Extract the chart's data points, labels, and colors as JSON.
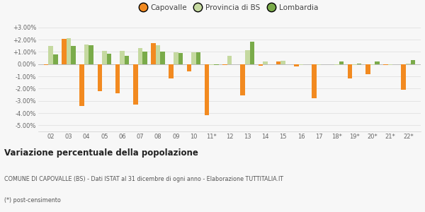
{
  "categories": [
    "02",
    "03",
    "04",
    "05",
    "06",
    "07",
    "08",
    "09",
    "10",
    "11*",
    "12",
    "13",
    "14",
    "15",
    "16",
    "17",
    "18*",
    "19*",
    "20*",
    "21*",
    "22*"
  ],
  "capovalle": [
    -0.1,
    2.05,
    -3.45,
    -2.2,
    -2.4,
    -3.3,
    1.7,
    -1.15,
    -0.6,
    -4.15,
    -0.05,
    -2.55,
    -0.15,
    0.2,
    -0.2,
    -2.8,
    0.0,
    -1.2,
    -0.85,
    -0.1,
    -2.1
  ],
  "provincia_bs": [
    1.5,
    2.1,
    1.6,
    1.05,
    1.05,
    1.3,
    1.55,
    0.95,
    0.95,
    -0.05,
    0.7,
    1.15,
    0.22,
    0.25,
    -0.05,
    -0.05,
    -0.1,
    -0.05,
    -0.05,
    -0.1,
    0.05
  ],
  "lombardia": [
    0.8,
    1.5,
    1.55,
    0.85,
    0.7,
    1.0,
    1.0,
    0.9,
    0.95,
    -0.05,
    0.0,
    1.8,
    0.0,
    0.0,
    0.0,
    0.0,
    0.2,
    0.05,
    0.2,
    0.0,
    0.35
  ],
  "color_capovalle": "#f28a20",
  "color_provincia": "#c5d9a0",
  "color_lombardia": "#7aab4a",
  "title_bold": "Variazione percentuale della popolazione",
  "subtitle": "COMUNE DI CAPOVALLE (BS) - Dati ISTAT al 31 dicembre di ogni anno - Elaborazione TUTTITALIA.IT",
  "footnote": "(*) post-censimento",
  "ylim": [
    -5.5,
    3.5
  ],
  "yticks": [
    -5.0,
    -4.0,
    -3.0,
    -2.0,
    -1.0,
    0.0,
    1.0,
    2.0,
    3.0
  ],
  "ytick_labels": [
    "-5.00%",
    "-4.00%",
    "-3.00%",
    "-2.00%",
    "-1.00%",
    "0.00%",
    "+1.00%",
    "+2.00%",
    "+3.00%"
  ],
  "background_color": "#f7f7f7",
  "bar_width": 0.26
}
